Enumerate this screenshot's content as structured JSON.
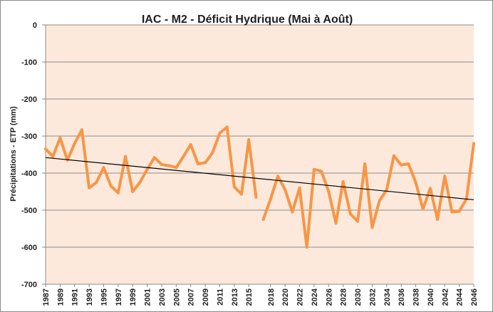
{
  "chart_data": {
    "type": "line",
    "title": "IAC - M2 - Déficit Hydrique (Mai à Août)",
    "ylabel": "Précipitations - ETP (mm)",
    "xlabel": "",
    "ylim": [
      -700,
      0
    ],
    "yticks": [
      0,
      -100,
      -200,
      -300,
      -400,
      -500,
      -600,
      -700
    ],
    "grid": true,
    "legend": "none",
    "colors": {
      "series": "#f79646",
      "trend": "#000000",
      "plot_bg": "#fde9dc",
      "grid": "#8a8a8a"
    },
    "x_tick_labels": [
      "1987",
      "1989",
      "1991",
      "1993",
      "1995",
      "1997",
      "1999",
      "2001",
      "2003",
      "2005",
      "2007",
      "2009",
      "2011",
      "2013",
      "2015",
      "2018",
      "2020",
      "2022",
      "2024",
      "2026",
      "2028",
      "2030",
      "2032",
      "2034",
      "2036",
      "2038",
      "2040",
      "2042",
      "2044",
      "2046"
    ],
    "series": [
      {
        "segments": [
          {
            "x": [
              1987,
              1988,
              1989,
              1990,
              1991,
              1992,
              1993,
              1994,
              1995,
              1996,
              1997,
              1998,
              1999,
              2000,
              2001,
              2002,
              2003,
              2004,
              2005,
              2006,
              2007,
              2008,
              2009,
              2010,
              2011,
              2012,
              2013,
              2014,
              2015,
              2016
            ],
            "values": [
              -335,
              -355,
              -305,
              -365,
              -320,
              -283,
              -440,
              -425,
              -385,
              -435,
              -453,
              -355,
              -450,
              -425,
              -390,
              -358,
              -377,
              -380,
              -385,
              -355,
              -323,
              -375,
              -372,
              -345,
              -292,
              -276,
              -437,
              -457,
              -310,
              -465
            ]
          },
          {
            "x": [
              2017,
              2018,
              2019,
              2020,
              2021,
              2022,
              2023,
              2024,
              2025,
              2026,
              2027,
              2028,
              2029,
              2030,
              2031,
              2032,
              2033,
              2034,
              2035,
              2036,
              2037,
              2038,
              2039,
              2040,
              2041,
              2042,
              2043,
              2044,
              2045,
              2046
            ],
            "values": [
              -525,
              -470,
              -408,
              -445,
              -505,
              -440,
              -600,
              -390,
              -395,
              -450,
              -535,
              -423,
              -510,
              -530,
              -375,
              -547,
              -475,
              -445,
              -353,
              -378,
              -375,
              -425,
              -497,
              -441,
              -525,
              -408,
              -505,
              -503,
              -470,
              -320
            ]
          }
        ]
      }
    ],
    "trendline": {
      "x": [
        1987,
        2046
      ],
      "values": [
        -358,
        -472
      ]
    }
  }
}
